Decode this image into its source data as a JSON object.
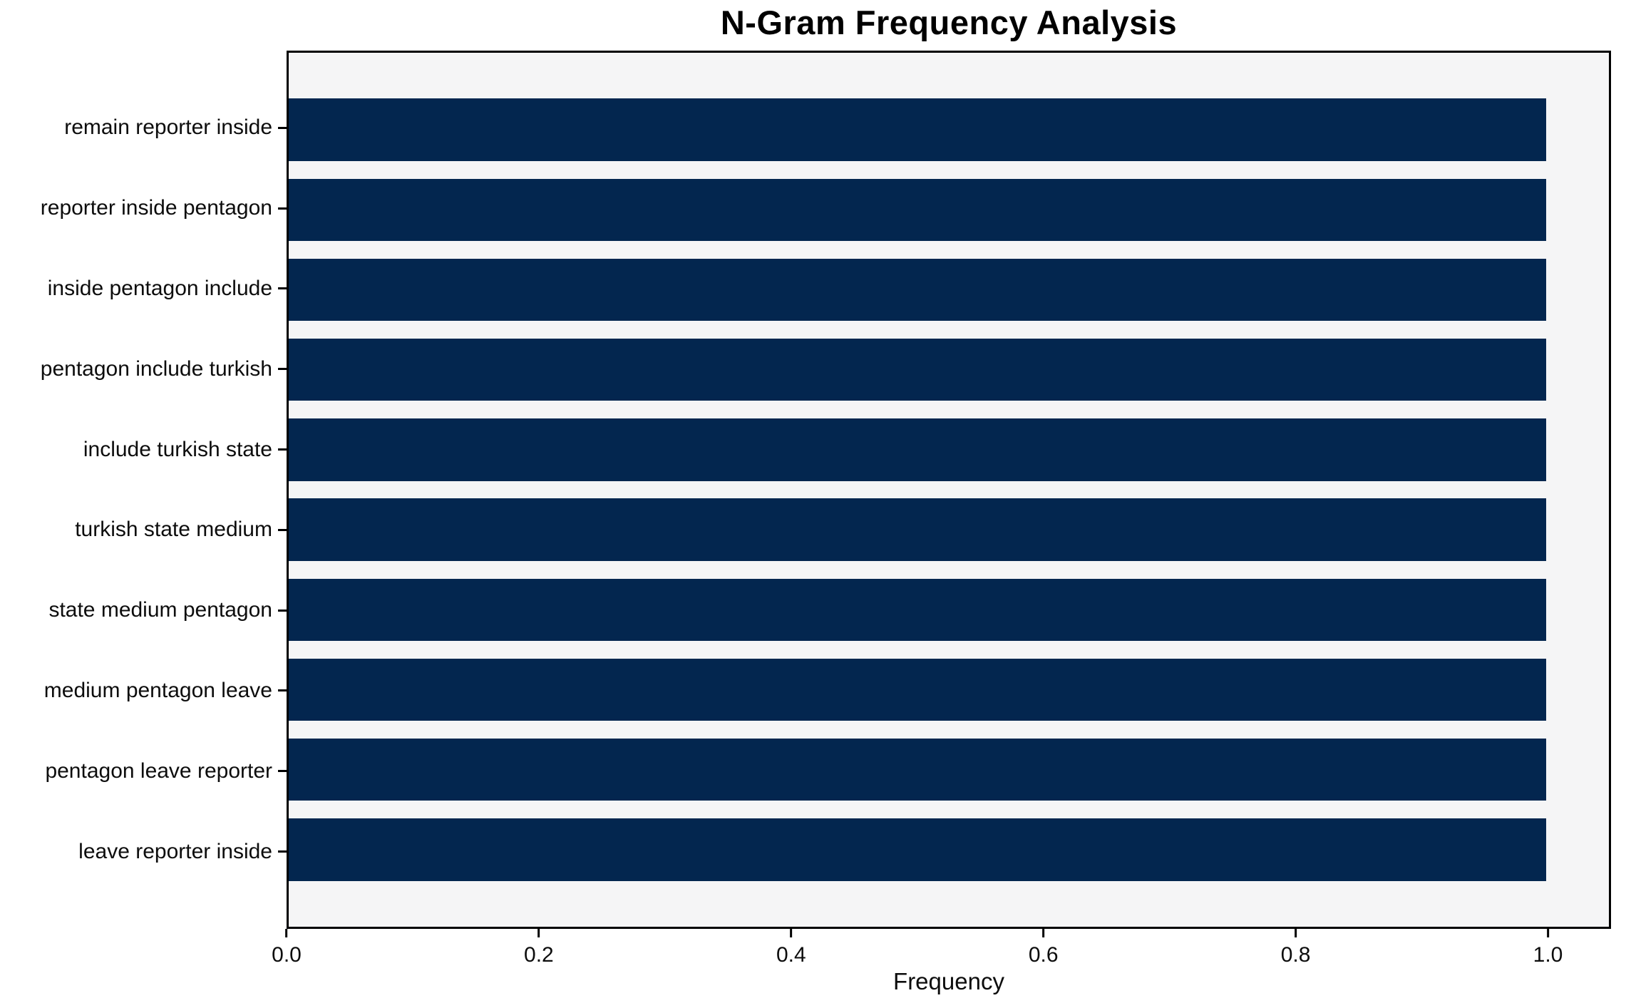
{
  "chart_data": {
    "type": "bar",
    "orientation": "horizontal",
    "title": "N-Gram Frequency Analysis",
    "xlabel": "Frequency",
    "ylabel": "",
    "categories": [
      "remain reporter inside",
      "reporter inside pentagon",
      "inside pentagon include",
      "pentagon include turkish",
      "include turkish state",
      "turkish state medium",
      "state medium pentagon",
      "medium pentagon leave",
      "pentagon leave reporter",
      "leave reporter inside"
    ],
    "values": [
      1.0,
      1.0,
      1.0,
      1.0,
      1.0,
      1.0,
      1.0,
      1.0,
      1.0,
      1.0
    ],
    "xlim": [
      0,
      1.05
    ],
    "x_ticks": [
      0.0,
      0.2,
      0.4,
      0.6,
      0.8,
      1.0
    ],
    "x_tick_labels": [
      "0.0",
      "0.2",
      "0.4",
      "0.6",
      "0.8",
      "1.0"
    ],
    "grid": false,
    "bar_height_fraction": 0.78,
    "colors": {
      "bar": "#03264f",
      "plot_background": "#f5f5f6",
      "figure_background": "#ffffff",
      "axis": "#000000",
      "text": "#0d0d0d"
    }
  }
}
